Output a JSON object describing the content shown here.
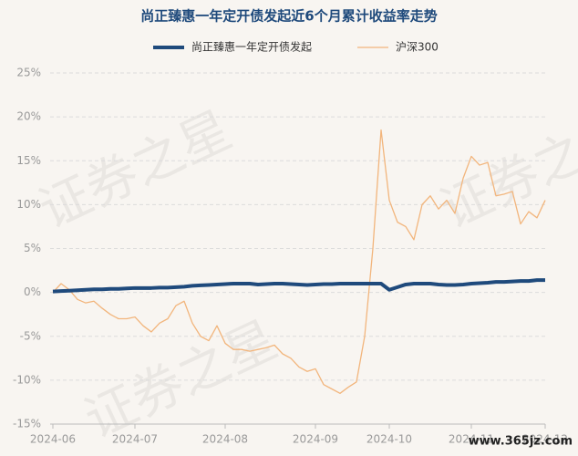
{
  "chart_data": {
    "type": "line",
    "title": "尚正臻惠一年定开债发起近6个月累计收益率走势",
    "watermark": "证券之星",
    "site": "www.365jz.com",
    "categories": [
      "2024-06",
      null,
      null,
      null,
      null,
      null,
      null,
      null,
      null,
      null,
      "2024-07",
      null,
      null,
      null,
      null,
      null,
      null,
      null,
      null,
      null,
      null,
      "2024-08",
      null,
      null,
      null,
      null,
      null,
      null,
      null,
      null,
      null,
      null,
      "2024-09",
      null,
      null,
      null,
      null,
      null,
      null,
      null,
      null,
      "2024-10",
      null,
      null,
      null,
      null,
      null,
      null,
      null,
      null,
      null,
      "2024-11",
      null,
      null,
      null,
      null,
      null,
      null,
      null,
      null,
      "2024-12"
    ],
    "series": [
      {
        "name": "尚正臻惠一年定开债发起",
        "color": "#1f4a7c",
        "width": 4,
        "values": [
          0.1,
          0.15,
          0.2,
          0.25,
          0.3,
          0.35,
          0.35,
          0.4,
          0.4,
          0.45,
          0.5,
          0.5,
          0.5,
          0.55,
          0.55,
          0.6,
          0.65,
          0.75,
          0.8,
          0.85,
          0.9,
          0.95,
          1.0,
          1.0,
          1.0,
          0.9,
          0.95,
          1.0,
          1.0,
          0.95,
          0.9,
          0.85,
          0.9,
          0.95,
          0.95,
          1.0,
          1.0,
          1.0,
          1.0,
          1.0,
          1.0,
          0.3,
          0.6,
          0.9,
          1.0,
          1.0,
          1.0,
          0.9,
          0.85,
          0.85,
          0.9,
          1.0,
          1.05,
          1.1,
          1.2,
          1.2,
          1.25,
          1.3,
          1.3,
          1.4,
          1.4
        ]
      },
      {
        "name": "沪深300",
        "color": "#f2b57c",
        "width": 1.3,
        "values": [
          0,
          1.0,
          0.3,
          -0.8,
          -1.2,
          -1.0,
          -1.8,
          -2.5,
          -3.0,
          -3.0,
          -2.8,
          -3.8,
          -4.5,
          -3.5,
          -3.0,
          -1.5,
          -1.0,
          -3.5,
          -5.0,
          -5.5,
          -3.8,
          -5.8,
          -6.5,
          -6.5,
          -6.7,
          -6.5,
          -6.3,
          -6.0,
          -7.0,
          -7.5,
          -8.5,
          -9.0,
          -8.7,
          -10.5,
          -11.0,
          -11.5,
          -10.8,
          -10.2,
          -5.0,
          5.0,
          18.5,
          10.5,
          8.0,
          7.5,
          6.0,
          10.0,
          11.0,
          9.5,
          10.5,
          9.0,
          13.0,
          15.5,
          14.5,
          14.8,
          11.0,
          11.2,
          11.5,
          7.8,
          9.2,
          8.5,
          10.5
        ]
      }
    ],
    "ylim": [
      -15,
      25
    ],
    "yticks": [
      {
        "value": -15,
        "label": "-15%"
      },
      {
        "value": -10,
        "label": "-10%"
      },
      {
        "value": -5,
        "label": "-5%"
      },
      {
        "value": 0,
        "label": "0%"
      },
      {
        "value": 5,
        "label": "5%"
      },
      {
        "value": 10,
        "label": "10%"
      },
      {
        "value": 15,
        "label": "15%"
      },
      {
        "value": 20,
        "label": "20%"
      },
      {
        "value": 25,
        "label": "25%"
      }
    ],
    "grid": true
  }
}
